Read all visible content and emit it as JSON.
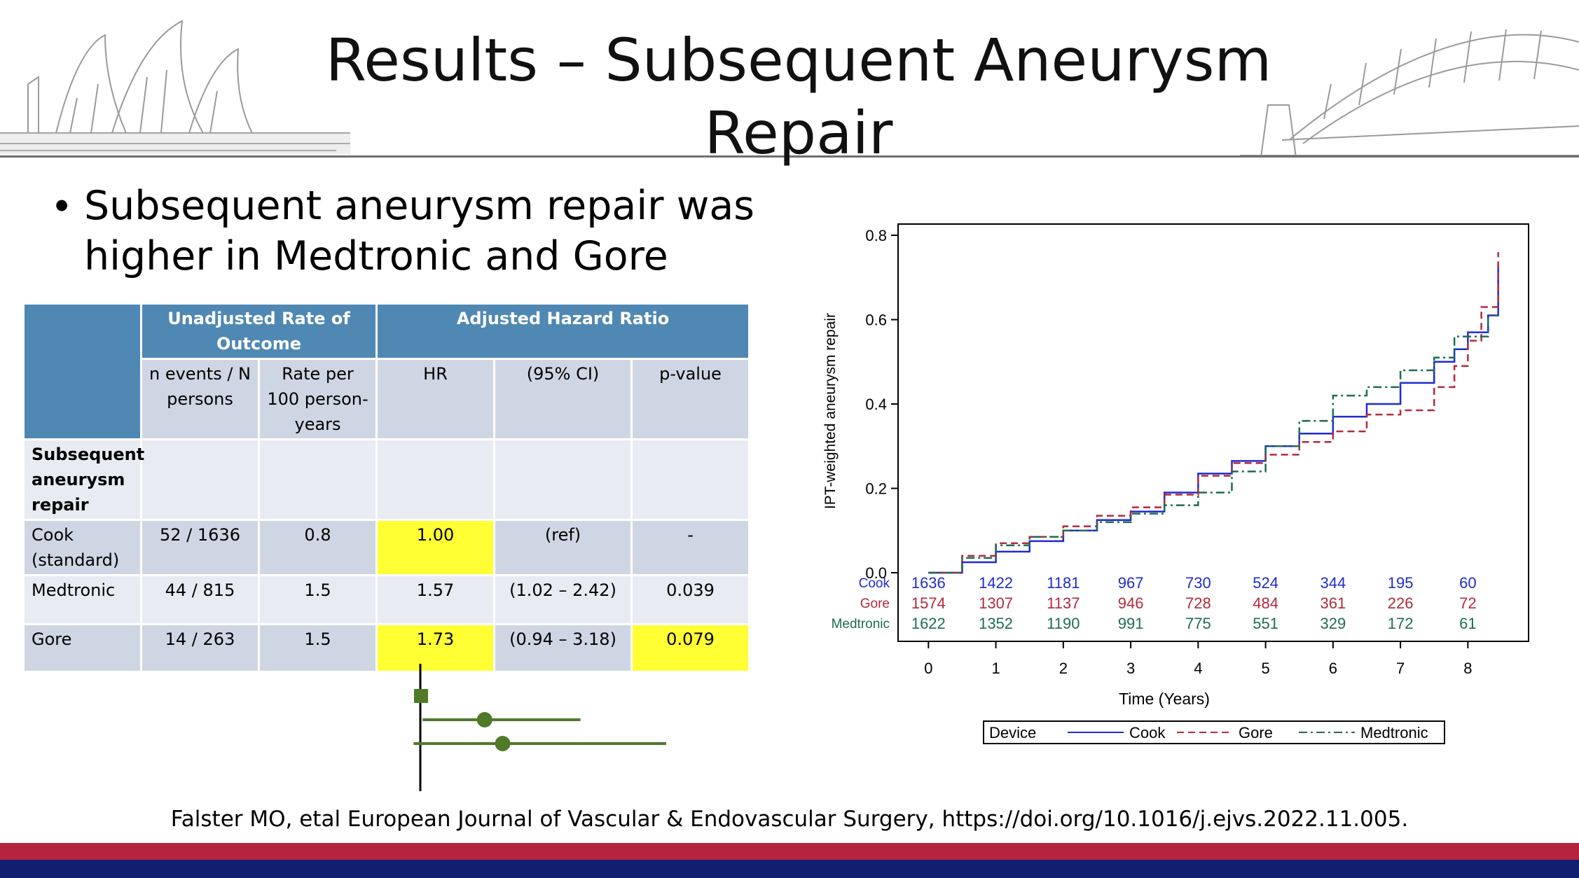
{
  "slide": {
    "title": "Results – Subsequent Aneurysm Repair",
    "bullet": "Subsequent aneurysm repair was higher in Medtronic and Gore",
    "citation": "Falster MO, etal  European Journal of Vascular & Endovascular Surgery, https://doi.org/10.1016/j.ejvs.2022.11.005."
  },
  "colors": {
    "header_blue": "#4f88b2",
    "highlight_yellow": "#ffff33",
    "forest_green": "#4f7a28",
    "cook": "#1f2bcf",
    "gore": "#b22a3c",
    "medtronic": "#1d6b57",
    "bar_red": "#b5243d",
    "bar_navy": "#10206e"
  },
  "table": {
    "group_headers": [
      "Unadjusted Rate of Outcome",
      "Adjusted Hazard Ratio"
    ],
    "sub_headers": [
      "n events / N persons",
      "Rate per 100 person-years",
      "HR",
      "(95% CI)",
      "p-value"
    ],
    "section_label": "Subsequent aneurysm repair",
    "rows": [
      {
        "label": "Cook (standard)",
        "events": "52 / 1636",
        "rate": "0.8",
        "hr": "1.00",
        "ci": "(ref)",
        "p": "-"
      },
      {
        "label": "Medtronic",
        "events": "44 / 815",
        "rate": "1.5",
        "hr": "1.57",
        "ci": "(1.02 – 2.42)",
        "p": "0.039"
      },
      {
        "label": "Gore",
        "events": "14 / 263",
        "rate": "1.5",
        "hr": "1.73",
        "ci": "(0.94 – 3.18)",
        "p": "0.079"
      }
    ]
  },
  "forest_plot": {
    "reference": 1.0,
    "estimates": [
      {
        "hr": 1.0,
        "reference": true
      },
      {
        "hr": 1.57,
        "low": 1.02,
        "high": 2.42
      },
      {
        "hr": 1.73,
        "low": 0.94,
        "high": 3.18
      }
    ]
  },
  "chart_data": {
    "type": "line",
    "title": "",
    "xlabel": "Time (Years)",
    "ylabel": "IPT-weighted aneurysm repair",
    "xlim": [
      -0.45,
      8.9
    ],
    "ylim": [
      0.0,
      0.82
    ],
    "x_ticks": [
      0,
      1,
      2,
      3,
      4,
      5,
      6,
      7,
      8
    ],
    "y_ticks": [
      "0.0",
      "0.2",
      "0.4",
      "0.6",
      "0.8"
    ],
    "step": true,
    "grid": false,
    "legend_position": "bottom",
    "legend_title": "Device",
    "series": [
      {
        "name": "Cook",
        "style": "solid",
        "x": [
          0,
          0.5,
          1,
          1.5,
          2,
          2.5,
          3,
          3.5,
          4,
          4.5,
          5,
          5.5,
          6,
          6.5,
          7,
          7.5,
          7.8,
          8,
          8.3,
          8.45
        ],
        "y": [
          0,
          0.025,
          0.05,
          0.075,
          0.1,
          0.125,
          0.145,
          0.19,
          0.235,
          0.265,
          0.3,
          0.33,
          0.37,
          0.4,
          0.45,
          0.5,
          0.53,
          0.57,
          0.61,
          0.73
        ]
      },
      {
        "name": "Gore",
        "style": "dashed",
        "x": [
          0,
          0.5,
          1,
          1.5,
          2,
          2.5,
          3,
          3.5,
          4,
          4.5,
          5,
          5.5,
          6,
          6.5,
          7,
          7.5,
          7.8,
          8,
          8.2,
          8.45
        ],
        "y": [
          0,
          0.04,
          0.07,
          0.085,
          0.11,
          0.135,
          0.155,
          0.185,
          0.23,
          0.26,
          0.28,
          0.31,
          0.335,
          0.375,
          0.385,
          0.44,
          0.49,
          0.55,
          0.63,
          0.76
        ]
      },
      {
        "name": "Medtronic",
        "style": "dashdot",
        "x": [
          0,
          0.5,
          1,
          1.5,
          2,
          2.5,
          3,
          3.5,
          4,
          4.5,
          5,
          5.5,
          6,
          6.5,
          7,
          7.5,
          7.8,
          8,
          8.3,
          8.45
        ],
        "y": [
          0,
          0.035,
          0.065,
          0.085,
          0.1,
          0.12,
          0.14,
          0.16,
          0.19,
          0.24,
          0.3,
          0.36,
          0.42,
          0.44,
          0.48,
          0.51,
          0.56,
          0.56,
          0.61,
          0.61
        ]
      }
    ],
    "risk_table": [
      {
        "name": "Cook",
        "values": [
          1636,
          1422,
          1181,
          967,
          730,
          524,
          344,
          195,
          60
        ]
      },
      {
        "name": "Gore",
        "values": [
          1574,
          1307,
          1137,
          946,
          728,
          484,
          361,
          226,
          72
        ]
      },
      {
        "name": "Medtronic",
        "values": [
          1622,
          1352,
          1190,
          991,
          775,
          551,
          329,
          172,
          61
        ]
      }
    ]
  }
}
